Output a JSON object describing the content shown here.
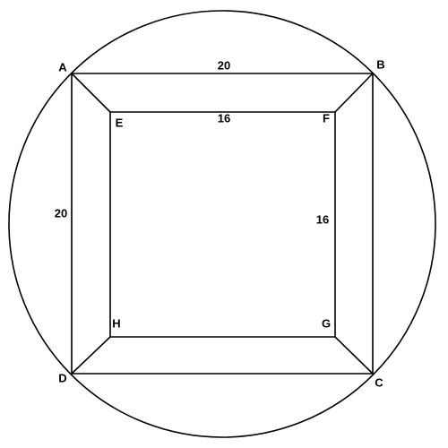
{
  "figure": {
    "vertices": {
      "A": "A",
      "B": "B",
      "C": "C",
      "D": "D",
      "E": "E",
      "F": "F",
      "G": "G",
      "H": "H"
    },
    "lengths": {
      "AB": "20",
      "AD": "20",
      "EF": "16",
      "FG": "16"
    }
  }
}
